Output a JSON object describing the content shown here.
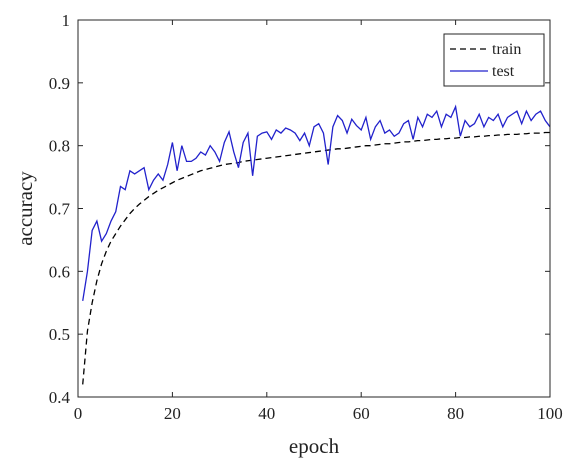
{
  "chart_data": {
    "type": "line",
    "title": "",
    "xlabel": "epoch",
    "ylabel": "accuracy",
    "xlim": [
      0,
      100
    ],
    "ylim": [
      0.4,
      1.0
    ],
    "xticks": [
      0,
      20,
      40,
      60,
      80,
      100
    ],
    "xtick_labels": [
      "0",
      "20",
      "40",
      "60",
      "80",
      "100"
    ],
    "yticks": [
      0.4,
      0.5,
      0.6,
      0.7,
      0.8,
      0.9,
      1.0
    ],
    "ytick_labels": [
      "0.4",
      "0.5",
      "0.6",
      "0.7",
      "0.8",
      "0.9",
      "1"
    ],
    "grid": false,
    "legend_position": "top-right",
    "x": [
      1,
      2,
      3,
      4,
      5,
      6,
      7,
      8,
      9,
      10,
      11,
      12,
      13,
      14,
      15,
      16,
      17,
      18,
      19,
      20,
      21,
      22,
      23,
      24,
      25,
      26,
      27,
      28,
      29,
      30,
      31,
      32,
      33,
      34,
      35,
      36,
      37,
      38,
      39,
      40,
      41,
      42,
      43,
      44,
      45,
      46,
      47,
      48,
      49,
      50,
      51,
      52,
      53,
      54,
      55,
      56,
      57,
      58,
      59,
      60,
      61,
      62,
      63,
      64,
      65,
      66,
      67,
      68,
      69,
      70,
      71,
      72,
      73,
      74,
      75,
      76,
      77,
      78,
      79,
      80,
      81,
      82,
      83,
      84,
      85,
      86,
      87,
      88,
      89,
      90,
      91,
      92,
      93,
      94,
      95,
      96,
      97,
      98,
      99,
      100
    ],
    "series": [
      {
        "name": "train",
        "color": "#000000",
        "dash": "dashed",
        "values": [
          0.42,
          0.505,
          0.55,
          0.585,
          0.612,
          0.632,
          0.648,
          0.66,
          0.672,
          0.682,
          0.692,
          0.7,
          0.707,
          0.713,
          0.719,
          0.724,
          0.729,
          0.733,
          0.737,
          0.741,
          0.745,
          0.748,
          0.751,
          0.754,
          0.757,
          0.76,
          0.762,
          0.764,
          0.766,
          0.768,
          0.77,
          0.771,
          0.772,
          0.773,
          0.775,
          0.776,
          0.777,
          0.778,
          0.779,
          0.78,
          0.781,
          0.782,
          0.783,
          0.784,
          0.785,
          0.786,
          0.787,
          0.788,
          0.789,
          0.79,
          0.791,
          0.792,
          0.793,
          0.794,
          0.795,
          0.795,
          0.796,
          0.797,
          0.798,
          0.799,
          0.8,
          0.8,
          0.801,
          0.802,
          0.803,
          0.803,
          0.804,
          0.805,
          0.806,
          0.806,
          0.807,
          0.808,
          0.808,
          0.809,
          0.81,
          0.81,
          0.811,
          0.811,
          0.812,
          0.812,
          0.813,
          0.813,
          0.814,
          0.814,
          0.815,
          0.815,
          0.816,
          0.816,
          0.817,
          0.817,
          0.818,
          0.818,
          0.818,
          0.819,
          0.819,
          0.82,
          0.82,
          0.82,
          0.821,
          0.821
        ]
      },
      {
        "name": "test",
        "color": "#2222cc",
        "dash": "solid",
        "values": [
          0.553,
          0.6,
          0.665,
          0.68,
          0.648,
          0.66,
          0.68,
          0.695,
          0.735,
          0.73,
          0.76,
          0.755,
          0.76,
          0.765,
          0.73,
          0.745,
          0.755,
          0.745,
          0.77,
          0.805,
          0.76,
          0.8,
          0.775,
          0.775,
          0.78,
          0.79,
          0.785,
          0.8,
          0.79,
          0.775,
          0.805,
          0.822,
          0.79,
          0.765,
          0.805,
          0.82,
          0.752,
          0.815,
          0.82,
          0.822,
          0.81,
          0.825,
          0.82,
          0.828,
          0.825,
          0.82,
          0.808,
          0.82,
          0.8,
          0.83,
          0.835,
          0.82,
          0.77,
          0.83,
          0.848,
          0.84,
          0.82,
          0.842,
          0.832,
          0.825,
          0.845,
          0.81,
          0.83,
          0.84,
          0.82,
          0.825,
          0.815,
          0.82,
          0.835,
          0.84,
          0.81,
          0.845,
          0.83,
          0.85,
          0.845,
          0.855,
          0.83,
          0.85,
          0.845,
          0.862,
          0.815,
          0.84,
          0.83,
          0.835,
          0.85,
          0.83,
          0.845,
          0.84,
          0.85,
          0.83,
          0.845,
          0.85,
          0.855,
          0.835,
          0.855,
          0.84,
          0.85,
          0.855,
          0.84,
          0.83
        ]
      }
    ]
  }
}
